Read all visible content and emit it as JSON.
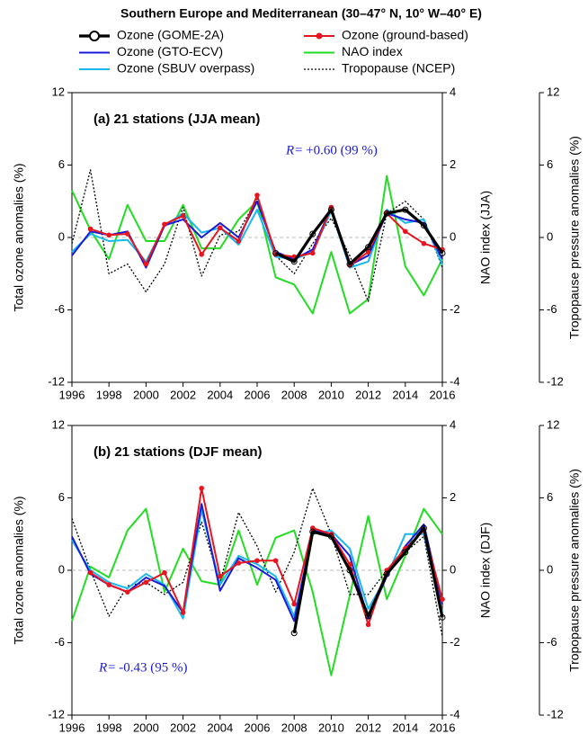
{
  "title": "Southern Europe and Mediterranean (30–47° N, 10° W–40° E)",
  "chart_data": [
    {
      "type": "line",
      "panel_label": "(a) 21 stations (JJA mean)",
      "annotation": {
        "symbol": "R",
        "text": "= +0.60 (99 %)"
      },
      "ylabel": "Total ozone anomalies (%)",
      "y2label": "NAO index (JJA)",
      "y3label": "Tropopause pressure anomalies (%)",
      "x": [
        1996,
        1997,
        1998,
        1999,
        2000,
        2001,
        2002,
        2003,
        2004,
        2005,
        2006,
        2007,
        2008,
        2009,
        2010,
        2011,
        2012,
        2013,
        2014,
        2015,
        2016
      ],
      "xlim": [
        1996,
        2016
      ],
      "xticks": [
        1996,
        1998,
        2000,
        2002,
        2004,
        2006,
        2008,
        2010,
        2012,
        2014,
        2016
      ],
      "ylim": [
        -12,
        12
      ],
      "yticks": [
        -12,
        -6,
        0,
        6,
        12
      ],
      "y2lim": [
        -4,
        4
      ],
      "y2ticks": [
        -4,
        -2,
        0,
        2,
        4
      ],
      "y3lim": [
        -12,
        12
      ],
      "y3ticks": [
        -12,
        -6,
        0,
        6,
        12
      ],
      "series": [
        {
          "name": "Ozone (GOME-2A)",
          "color": "#000000",
          "width": 3.2,
          "marker": "open-circle",
          "axis": "y",
          "values": [
            null,
            null,
            null,
            null,
            null,
            null,
            null,
            null,
            null,
            null,
            null,
            -1.3,
            -2.0,
            0.3,
            2.3,
            -2.2,
            -0.8,
            2.0,
            2.3,
            1.0,
            -1.3
          ]
        },
        {
          "name": "Ozone (ground-based)",
          "color": "#e8141e",
          "width": 2,
          "marker": "filled-circle",
          "axis": "y",
          "values": [
            null,
            0.7,
            0.2,
            0.3,
            -2.2,
            1.1,
            1.8,
            -1.4,
            0.8,
            -0.3,
            3.5,
            -1.4,
            -1.6,
            -1.3,
            2.5,
            -2.3,
            -1.2,
            2.0,
            0.5,
            -0.5,
            -1.0
          ]
        },
        {
          "name": "Ozone (GTO-ECV)",
          "color": "#1a1adb",
          "width": 2,
          "axis": "y",
          "values": [
            -1.5,
            0.5,
            0.2,
            0.5,
            -2.5,
            1.0,
            1.5,
            0.0,
            1.2,
            0.0,
            3.0,
            -1.2,
            -1.8,
            -1.0,
            2.5,
            -2.3,
            -1.5,
            2.0,
            1.5,
            1.2,
            -1.8
          ]
        },
        {
          "name": "NAO index",
          "color": "#22dd22",
          "width": 2,
          "axis": "y2",
          "values": [
            1.3,
            0.2,
            -0.6,
            0.9,
            -0.1,
            -0.1,
            0.9,
            -0.3,
            -0.3,
            0.5,
            1.0,
            -1.1,
            -1.3,
            -2.1,
            -0.4,
            -2.1,
            -1.7,
            1.7,
            -0.8,
            -1.6,
            -0.6
          ]
        },
        {
          "name": "Ozone (SBUV overpass)",
          "color": "#18b8f0",
          "width": 2,
          "axis": "y",
          "values": [
            -1.2,
            0.3,
            -0.3,
            -0.2,
            -2.0,
            1.0,
            2.0,
            0.4,
            0.8,
            -0.6,
            2.3,
            -1.6,
            -1.8,
            -1.2,
            2.2,
            -2.5,
            -2.0,
            2.3,
            1.2,
            1.5,
            -2.3
          ]
        },
        {
          "name": "Tropopause (NCEP)",
          "color": "#000000",
          "width": 1.3,
          "dash": "2,2",
          "axis": "y3",
          "values": [
            -0.5,
            5.6,
            -3.0,
            -2.2,
            -4.5,
            -2.2,
            2.5,
            -3.2,
            0.2,
            0.5,
            3.2,
            -1.5,
            -3.0,
            -0.5,
            1.6,
            -1.5,
            -5.3,
            2.0,
            3.0,
            1.5,
            -2.5
          ]
        }
      ]
    },
    {
      "type": "line",
      "panel_label": "(b) 21 stations (DJF mean)",
      "annotation": {
        "symbol": "R",
        "text": "= -0.43 (95 %)"
      },
      "ylabel": "Total ozone anomalies (%)",
      "y2label": "NAO index (DJF)",
      "y3label": "Tropopause pressure anomalies (%)",
      "x": [
        1996,
        1997,
        1998,
        1999,
        2000,
        2001,
        2002,
        2003,
        2004,
        2005,
        2006,
        2007,
        2008,
        2009,
        2010,
        2011,
        2012,
        2013,
        2014,
        2015,
        2016
      ],
      "xlim": [
        1996,
        2016
      ],
      "xticks": [
        1996,
        1998,
        2000,
        2002,
        2004,
        2006,
        2008,
        2010,
        2012,
        2014,
        2016
      ],
      "ylim": [
        -12,
        12
      ],
      "yticks": [
        -12,
        -6,
        0,
        6,
        12
      ],
      "y2lim": [
        -4,
        4
      ],
      "y2ticks": [
        -4,
        -2,
        0,
        2,
        4
      ],
      "y3lim": [
        -12,
        12
      ],
      "y3ticks": [
        -12,
        -6,
        0,
        6,
        12
      ],
      "series": [
        {
          "name": "Ozone (GOME-2A)",
          "color": "#000000",
          "width": 3.2,
          "marker": "open-circle",
          "axis": "y",
          "values": [
            null,
            null,
            null,
            null,
            null,
            null,
            null,
            null,
            null,
            null,
            null,
            null,
            -5.2,
            3.2,
            2.8,
            0.0,
            -3.8,
            -0.3,
            1.5,
            3.5,
            -3.9
          ]
        },
        {
          "name": "Ozone (ground-based)",
          "color": "#e8141e",
          "width": 2,
          "marker": "filled-circle",
          "axis": "y",
          "values": [
            null,
            -0.2,
            -1.2,
            -1.8,
            -1.0,
            -0.2,
            -3.5,
            6.8,
            -0.5,
            0.6,
            0.8,
            0.8,
            -2.8,
            3.5,
            3.0,
            0.5,
            -4.5,
            0.0,
            1.8,
            3.3,
            -2.4
          ]
        },
        {
          "name": "Ozone (GTO-ECV)",
          "color": "#1a1adb",
          "width": 2,
          "axis": "y",
          "values": [
            2.8,
            -0.3,
            -1.2,
            -1.8,
            -0.6,
            -1.3,
            -3.5,
            5.5,
            -1.7,
            1.0,
            0.2,
            -0.8,
            -4.2,
            3.3,
            3.0,
            1.2,
            -4.0,
            -0.5,
            2.0,
            3.8,
            -2.8
          ]
        },
        {
          "name": "NAO index",
          "color": "#22dd22",
          "width": 2,
          "axis": "y2",
          "values": [
            -1.4,
            0.1,
            -0.2,
            1.1,
            1.7,
            -0.6,
            0.6,
            -0.3,
            -0.4,
            1.1,
            -0.4,
            0.9,
            1.1,
            -0.6,
            -2.9,
            -0.7,
            1.5,
            -0.8,
            0.4,
            1.7,
            1.0
          ]
        },
        {
          "name": "Ozone (SBUV overpass)",
          "color": "#18b8f0",
          "width": 2,
          "axis": "y",
          "values": [
            2.5,
            0.0,
            -1.0,
            -1.5,
            -0.3,
            -1.2,
            -4.0,
            5.0,
            -1.2,
            1.2,
            0.5,
            -0.5,
            -3.8,
            3.0,
            3.3,
            1.8,
            -3.2,
            -0.5,
            3.0,
            3.0,
            -3.5
          ]
        },
        {
          "name": "Tropopause (NCEP)",
          "color": "#000000",
          "width": 1.3,
          "dash": "2,2",
          "axis": "y3",
          "values": [
            4.3,
            0.0,
            -3.8,
            -1.3,
            -1.0,
            -2.0,
            -1.0,
            4.0,
            -1.0,
            4.8,
            2.0,
            -1.8,
            1.5,
            6.8,
            3.0,
            -2.0,
            -2.0,
            0.0,
            1.5,
            2.8,
            -5.5
          ]
        }
      ]
    }
  ]
}
